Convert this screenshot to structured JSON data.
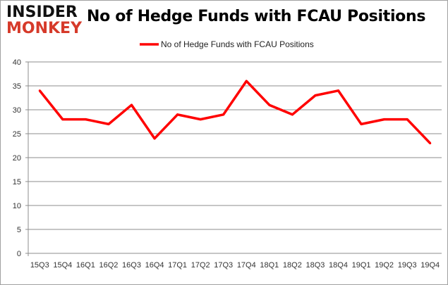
{
  "logo": {
    "line1": "INSIDER",
    "line2": "MONKEY"
  },
  "chart_data": {
    "type": "line",
    "title": "No of Hedge Funds with FCAU Positions",
    "categories": [
      "15Q3",
      "15Q4",
      "16Q1",
      "16Q2",
      "16Q3",
      "16Q4",
      "17Q1",
      "17Q2",
      "17Q3",
      "17Q4",
      "18Q1",
      "18Q2",
      "18Q3",
      "18Q4",
      "19Q1",
      "19Q2",
      "19Q3",
      "19Q4"
    ],
    "series": [
      {
        "name": "No of Hedge Funds with FCAU Positions",
        "color": "#ff0000",
        "values": [
          34,
          28,
          28,
          27,
          31,
          24,
          29,
          28,
          29,
          36,
          31,
          29,
          33,
          34,
          27,
          28,
          28,
          23
        ]
      }
    ],
    "ylim": [
      0,
      40
    ],
    "yticks": [
      0,
      5,
      10,
      15,
      20,
      25,
      30,
      35,
      40
    ],
    "grid": true,
    "legend": "top-center",
    "xlabel": "",
    "ylabel": ""
  }
}
